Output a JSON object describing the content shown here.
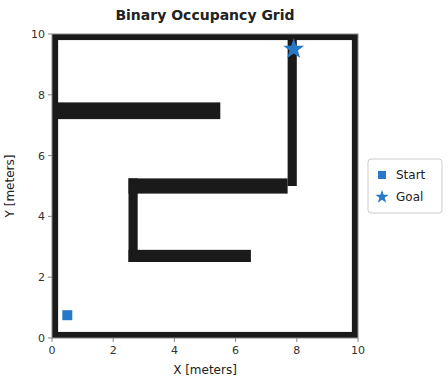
{
  "chart_data": {
    "type": "occupancy_grid",
    "title": "Binary Occupancy Grid",
    "x_label": "X [meters]",
    "y_label": "Y [meters]",
    "xlim": [
      0,
      10
    ],
    "ylim": [
      0,
      10
    ],
    "xticks": [
      0,
      2,
      4,
      6,
      8,
      10
    ],
    "yticks": [
      0,
      2,
      4,
      6,
      8,
      10
    ],
    "walls": [
      {
        "x": 0,
        "y": 0,
        "w": 10,
        "h": 0.2
      },
      {
        "x": 0,
        "y": 9.8,
        "w": 10,
        "h": 0.2
      },
      {
        "x": 0,
        "y": 0,
        "w": 0.2,
        "h": 10
      },
      {
        "x": 9.8,
        "y": 0,
        "w": 0.2,
        "h": 10
      },
      {
        "x": 0.0,
        "y": 7.2,
        "w": 5.5,
        "h": 0.55
      },
      {
        "x": 7.7,
        "y": 5.0,
        "w": 0.3,
        "h": 5.0
      },
      {
        "x": 2.5,
        "y": 4.75,
        "w": 5.2,
        "h": 0.5
      },
      {
        "x": 2.5,
        "y": 2.5,
        "w": 0.3,
        "h": 2.75
      },
      {
        "x": 2.5,
        "y": 2.5,
        "w": 4.0,
        "h": 0.4
      }
    ],
    "series": [
      {
        "name": "Start",
        "color": "#2878c8",
        "marker": "square",
        "x": [
          0.5
        ],
        "values": [
          0.75
        ]
      },
      {
        "name": "Goal",
        "color": "#2878c8",
        "marker": "star",
        "x": [
          7.9
        ],
        "values": [
          9.5
        ]
      }
    ],
    "legend": "right"
  }
}
